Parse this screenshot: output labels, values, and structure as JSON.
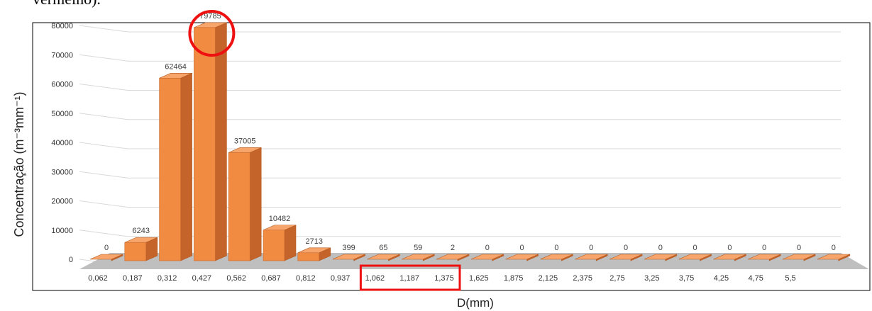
{
  "top_text": "vermelho).",
  "chart_data": {
    "type": "bar",
    "title": "",
    "xlabel": "D(mm)",
    "ylabel": "Concentração (m⁻³mm⁻¹)",
    "ylim": [
      0,
      80000
    ],
    "yticks": [
      "0",
      "10000",
      "20000",
      "30000",
      "40000",
      "50000",
      "60000",
      "70000",
      "80000"
    ],
    "categories": [
      "0,062",
      "0,187",
      "0,312",
      "0,427",
      "0,562",
      "0,687",
      "0,812",
      "0,937",
      "1,062",
      "1,187",
      "1,375",
      "1,625",
      "1,875",
      "2,125",
      "2,375",
      "2,75",
      "3,25",
      "3,75",
      "4,25",
      "4,75",
      "5,5",
      ""
    ],
    "values": [
      0,
      6243,
      62464,
      79785,
      37005,
      10482,
      2713,
      399,
      65,
      59,
      2,
      0,
      0,
      0,
      0,
      0,
      0,
      0,
      0,
      0,
      0,
      0
    ],
    "bar_style": "3d",
    "grid": true,
    "colors": {
      "bar_front": "#f28b42",
      "bar_side": "#c4642a",
      "bar_top": "#f7a56b",
      "floor": "#bfbfbf",
      "highlight": "#ee1111",
      "gridline": "#d9d9d9"
    },
    "annotations": [
      {
        "shape": "circle",
        "target": "79785"
      },
      {
        "shape": "rectangle",
        "target_categories": [
          "1,062",
          "1,187",
          "1,375"
        ]
      }
    ]
  }
}
